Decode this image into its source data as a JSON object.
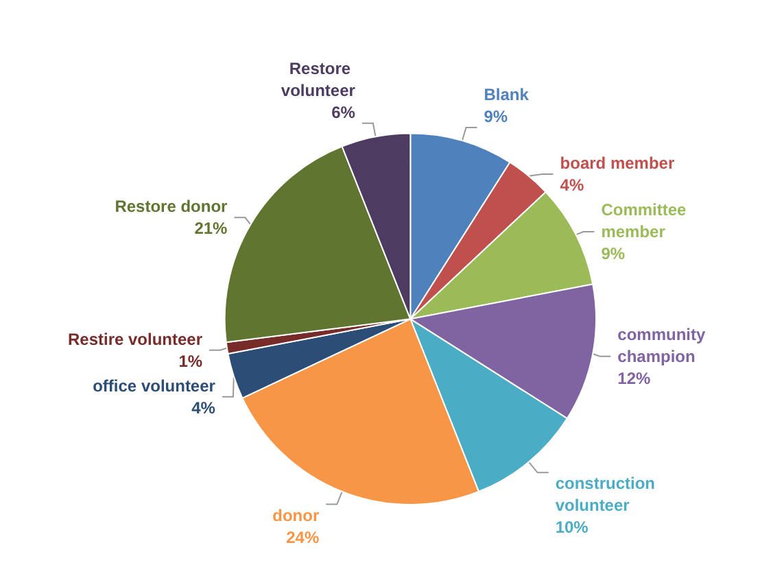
{
  "chart_data": {
    "type": "pie",
    "categories": [
      "Blank",
      "board member",
      "Committee member",
      "community champion",
      "construction volunteer",
      "donor",
      "office volunteer",
      "Restire volunteer",
      "Restore donor",
      "Restore volunteer"
    ],
    "values": [
      9,
      4,
      9,
      12,
      10,
      24,
      4,
      1,
      21,
      6
    ],
    "colors": [
      "#4f81bd",
      "#c0504d",
      "#9bbb59",
      "#8064a2",
      "#4bacc6",
      "#f79646",
      "#2c4d75",
      "#772c2a",
      "#5f7530",
      "#4d3b62"
    ],
    "value_labels": [
      "9%",
      "4%",
      "9%",
      "12%",
      "10%",
      "24%",
      "4%",
      "1%",
      "21%",
      "6%"
    ],
    "legend": false
  }
}
